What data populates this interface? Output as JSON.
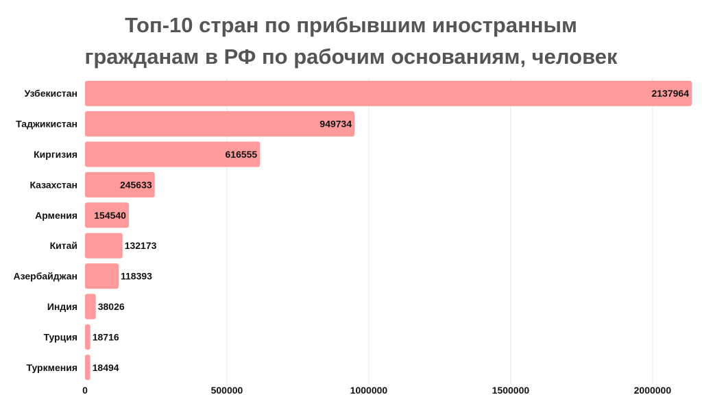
{
  "chart_data": {
    "type": "bar",
    "orientation": "horizontal",
    "title_lines": [
      "Топ-10 стран по прибывшим иностранным",
      "гражданам в РФ по рабочим основаниям, человек"
    ],
    "categories": [
      "Узбекистан",
      "Таджикистан",
      "Киргизия",
      "Казахстан",
      "Армения",
      "Китай",
      "Азербайджан",
      "Индия",
      "Турция",
      "Туркмения"
    ],
    "values": [
      2137964,
      949734,
      616555,
      245633,
      154540,
      132173,
      118393,
      38026,
      18716,
      18494
    ],
    "value_labels": [
      "2137964",
      "949734",
      "616555",
      "245633",
      "154540",
      "132173",
      "118393",
      "38026",
      "18716",
      "18494"
    ],
    "xlim": [
      0,
      2137964
    ],
    "x_ticks": [
      0,
      500000,
      1000000,
      1500000,
      2000000
    ],
    "x_tick_labels": [
      "0",
      "500000",
      "1000000",
      "1500000",
      "2000000"
    ],
    "bar_color": "#ff9b9b",
    "grid_color": "#e6e6e6",
    "grid": "vertical",
    "legend": "none"
  }
}
